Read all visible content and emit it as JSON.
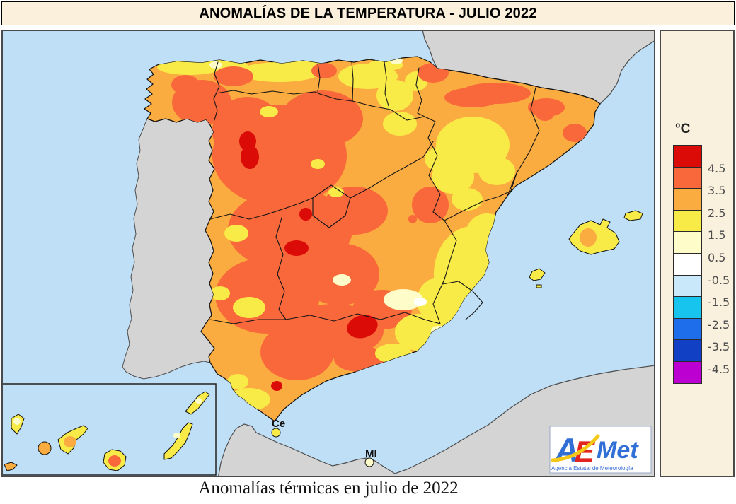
{
  "title": "ANOMALÍAS DE LA TEMPERATURA - JULIO 2022",
  "caption": "Anomalías térmicas en julio de 2022",
  "legend": {
    "unit": "°C",
    "colors": [
      "#db0b07",
      "#f9683b",
      "#fbac40",
      "#f8eb48",
      "#fefcc8",
      "#ffffff",
      "#c9e8fa",
      "#17c4ee",
      "#1e6eeb",
      "#1240c4",
      "#bc00d2"
    ],
    "boundary_labels": [
      "4.5",
      "3.5",
      "2.5",
      "1.5",
      "0.5",
      "-0.5",
      "-1.5",
      "-2.5",
      "-3.5",
      "-4.5"
    ]
  },
  "map_labels": {
    "ceuta": "Ce",
    "melilla": "Ml"
  },
  "logo": {
    "letter_a": "A",
    "letter_e": "E",
    "letters_met": "Met",
    "subtitle": "Agencia Estatal de Meteorología"
  },
  "map_colors": {
    "sea": "#bfdff7",
    "foreign_land": "#d4d4d4",
    "coast_stroke": "#4d4d4d",
    "border_stroke": "#141414"
  },
  "chart_data": {
    "type": "heatmap",
    "title": "ANOMALÍAS DE LA TEMPERATURA - JULIO 2022",
    "caption": "Anomalías térmicas en julio de 2022",
    "unit": "°C",
    "scale": [
      {
        "range": "> 4.5",
        "color": "#db0b07"
      },
      {
        "range": "3.5 to 4.5",
        "color": "#f9683b"
      },
      {
        "range": "2.5 to 3.5",
        "color": "#fbac40"
      },
      {
        "range": "1.5 to 2.5",
        "color": "#f8eb48"
      },
      {
        "range": "0.5 to 1.5",
        "color": "#fefcc8"
      },
      {
        "range": "-0.5 to 0.5",
        "color": "#ffffff"
      },
      {
        "range": "-1.5 to -0.5",
        "color": "#c9e8fa"
      },
      {
        "range": "-2.5 to -1.5",
        "color": "#17c4ee"
      },
      {
        "range": "-3.5 to -2.5",
        "color": "#1e6eeb"
      },
      {
        "range": "-4.5 to -3.5",
        "color": "#1240c4"
      },
      {
        "range": "< -4.5",
        "color": "#bc00d2"
      }
    ],
    "observations": [
      {
        "area": "Interior west and central peninsula",
        "anomaly_c": "+3.5 to +4.5"
      },
      {
        "area": "Scattered inland hotspots (NW border, Madrid area, inner Andalusia)",
        "anomaly_c": "> +4.5"
      },
      {
        "area": "Galicia, Catalonia, Ebro margins, most of Andalusia, Balearics",
        "anomaly_c": "+2.5 to +3.5"
      },
      {
        "area": "Cantabrian coast, central Ebro valley, SE Mediterranean coast, Canary Islands",
        "anomaly_c": "+1.5 to +2.5"
      },
      {
        "area": "Small patches in Murcia/Albacete and along north coast",
        "anomaly_c": "+0.5 to +1.5"
      },
      {
        "area": "Tiny core spot in Murcia",
        "anomaly_c": "-0.5 to +0.5"
      }
    ],
    "city_markers": [
      {
        "label": "Ce"
      },
      {
        "label": "Ml"
      }
    ]
  }
}
